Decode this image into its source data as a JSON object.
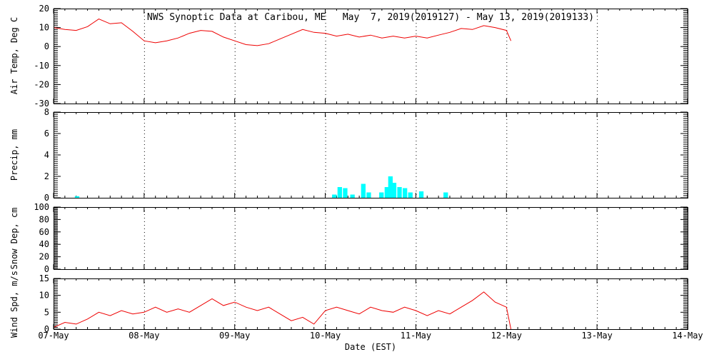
{
  "header": {
    "title": "NWS Synoptic Data at Caribou, ME   May  7, 2019(2019127) - May 13, 2019(2019133)"
  },
  "axes": {
    "xlabel": "Date (EST)",
    "x_ticks": [
      "07-May",
      "08-May",
      "09-May",
      "10-May",
      "11-May",
      "12-May",
      "13-May",
      "14-May"
    ],
    "x_range_days": [
      7,
      14
    ]
  },
  "colors": {
    "line": "#ee0000",
    "bar": "#00ffff",
    "axis": "#000000"
  },
  "chart_data": [
    {
      "type": "line",
      "name": "air-temp",
      "ylabel": "Air Temp, Deg C",
      "ylim": [
        -30,
        20
      ],
      "yticks": [
        -30,
        -20,
        -10,
        0,
        10,
        20
      ],
      "y_minor_step": 1,
      "x": [
        7.0,
        7.125,
        7.25,
        7.375,
        7.5,
        7.625,
        7.75,
        7.875,
        8.0,
        8.125,
        8.25,
        8.375,
        8.5,
        8.625,
        8.75,
        8.875,
        9.0,
        9.125,
        9.25,
        9.375,
        9.5,
        9.625,
        9.75,
        9.875,
        10.0,
        10.125,
        10.25,
        10.375,
        10.5,
        10.625,
        10.75,
        10.875,
        11.0,
        11.125,
        11.25,
        11.375,
        11.5,
        11.625,
        11.75,
        11.875,
        12.0,
        12.05
      ],
      "values": [
        10,
        9,
        8.5,
        10.5,
        14.5,
        12,
        12.5,
        8,
        3,
        2,
        3,
        4.5,
        7,
        8.5,
        8,
        5,
        3,
        1,
        0.5,
        1.5,
        4,
        6.5,
        9,
        7.5,
        7,
        5.5,
        6.5,
        5,
        6,
        4.5,
        5.5,
        4.5,
        5.5,
        4.5,
        6,
        7.5,
        9.5,
        9,
        11,
        10,
        8.5,
        3
      ]
    },
    {
      "type": "bar",
      "name": "precip",
      "ylabel": "Precip, mm",
      "ylim": [
        0,
        8
      ],
      "yticks": [
        0,
        2,
        4,
        6,
        8
      ],
      "y_minor_step": 0.2,
      "bar_width_days": 0.05,
      "bars": [
        {
          "x": 7.26,
          "v": 0.15
        },
        {
          "x": 10.1,
          "v": 0.3
        },
        {
          "x": 10.16,
          "v": 1.0
        },
        {
          "x": 10.22,
          "v": 0.9
        },
        {
          "x": 10.3,
          "v": 0.3
        },
        {
          "x": 10.42,
          "v": 1.3
        },
        {
          "x": 10.48,
          "v": 0.5
        },
        {
          "x": 10.62,
          "v": 0.5
        },
        {
          "x": 10.68,
          "v": 1.0
        },
        {
          "x": 10.72,
          "v": 2.0
        },
        {
          "x": 10.76,
          "v": 1.4
        },
        {
          "x": 10.82,
          "v": 1.0
        },
        {
          "x": 10.88,
          "v": 0.9
        },
        {
          "x": 10.94,
          "v": 0.5
        },
        {
          "x": 11.06,
          "v": 0.6
        },
        {
          "x": 11.33,
          "v": 0.5
        }
      ]
    },
    {
      "type": "line",
      "name": "snow-depth",
      "ylabel": "Snow Dep, cm",
      "ylim": [
        0,
        100
      ],
      "yticks": [
        0,
        20,
        40,
        60,
        80,
        100
      ],
      "y_minor_step": 2,
      "x": [],
      "values": []
    },
    {
      "type": "line",
      "name": "wind-speed",
      "ylabel": "Wind Spd, m/s",
      "ylim": [
        0,
        15
      ],
      "yticks": [
        0,
        5,
        10,
        15
      ],
      "y_minor_step": 0.5,
      "x": [
        7.0,
        7.125,
        7.25,
        7.375,
        7.5,
        7.625,
        7.75,
        7.875,
        8.0,
        8.125,
        8.25,
        8.375,
        8.5,
        8.625,
        8.75,
        8.875,
        9.0,
        9.125,
        9.25,
        9.375,
        9.5,
        9.625,
        9.75,
        9.875,
        10.0,
        10.125,
        10.25,
        10.375,
        10.5,
        10.625,
        10.75,
        10.875,
        11.0,
        11.125,
        11.25,
        11.375,
        11.5,
        11.625,
        11.75,
        11.875,
        12.0,
        12.05
      ],
      "values": [
        0.5,
        2,
        1.5,
        3,
        5,
        4,
        5.5,
        4.5,
        5,
        6.5,
        5,
        6,
        5,
        7,
        9,
        7,
        8,
        6.5,
        5.5,
        6.5,
        4.5,
        2.5,
        3.5,
        1.5,
        5.5,
        6.5,
        5.5,
        4.5,
        6.5,
        5.5,
        5,
        6.5,
        5.5,
        4,
        5.5,
        4.5,
        6.5,
        8.5,
        11,
        8,
        6.5,
        0
      ]
    }
  ]
}
